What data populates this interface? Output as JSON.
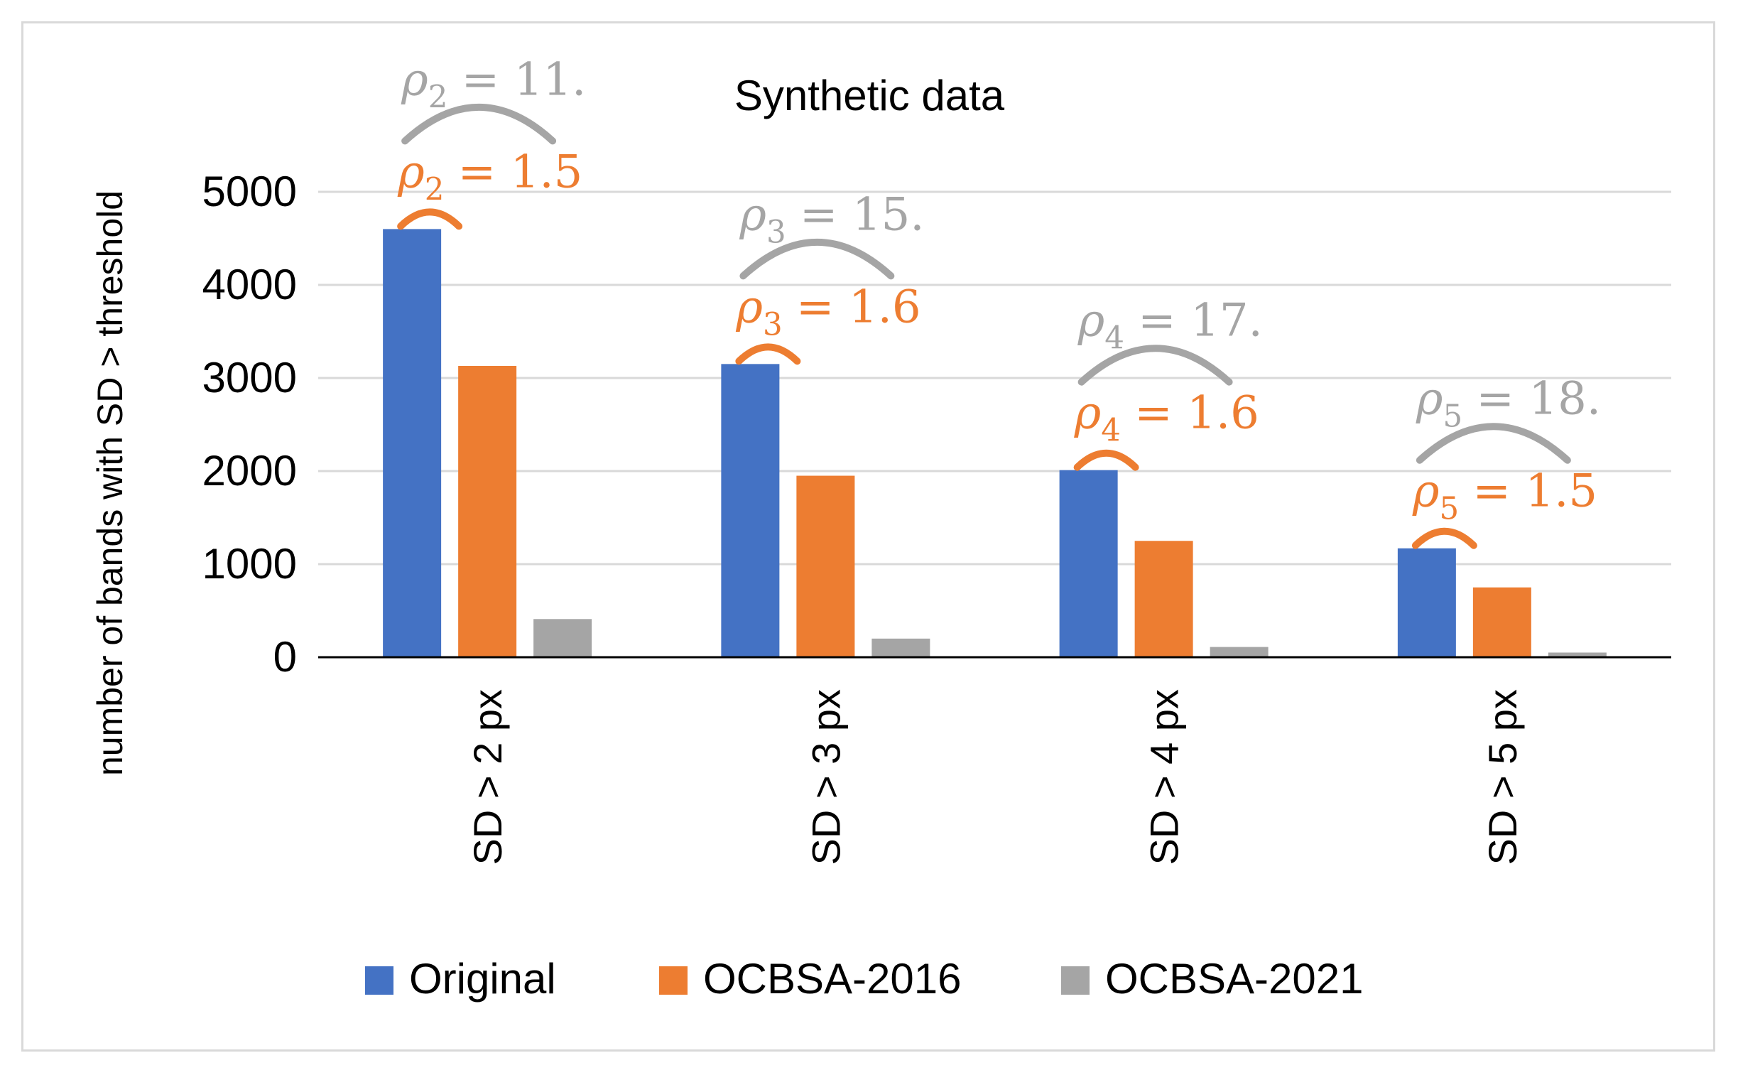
{
  "chart_data": {
    "type": "bar",
    "title": "Synthetic data",
    "xlabel": "",
    "ylabel": "number of bands with SD > threshold",
    "ylim": [
      0,
      5000
    ],
    "yticks": [
      0,
      1000,
      2000,
      3000,
      4000,
      5000
    ],
    "grid": true,
    "legend_position": "bottom",
    "categories": [
      "SD > 2 px",
      "SD > 3 px",
      "SD > 4 px",
      "SD > 5 px"
    ],
    "series": [
      {
        "name": "Original",
        "color": "#4472C4",
        "values": [
          4600,
          3150,
          2010,
          1170
        ]
      },
      {
        "name": "OCBSA-2016",
        "color": "#ED7D31",
        "values": [
          3130,
          1950,
          1250,
          750
        ]
      },
      {
        "name": "OCBSA-2021",
        "color": "#A5A5A5",
        "values": [
          410,
          200,
          110,
          50
        ]
      }
    ],
    "annotations": [
      {
        "category": "SD > 2 px",
        "orange": {
          "symbol": "ρ",
          "sub": "2",
          "text": "= 1.5"
        },
        "gray": {
          "symbol": "ρ",
          "sub": "2",
          "text": "= 11."
        }
      },
      {
        "category": "SD > 3 px",
        "orange": {
          "symbol": "ρ",
          "sub": "3",
          "text": "= 1.6"
        },
        "gray": {
          "symbol": "ρ",
          "sub": "3",
          "text": "= 15."
        }
      },
      {
        "category": "SD > 4 px",
        "orange": {
          "symbol": "ρ",
          "sub": "4",
          "text": "= 1.6"
        },
        "gray": {
          "symbol": "ρ",
          "sub": "4",
          "text": "= 17."
        }
      },
      {
        "category": "SD > 5 px",
        "orange": {
          "symbol": "ρ",
          "sub": "5",
          "text": "= 1.5"
        },
        "gray": {
          "symbol": "ρ",
          "sub": "5",
          "text": "= 18."
        }
      }
    ],
    "annotation_colors": {
      "orange": "#ED7D31",
      "gray": "#A5A5A5"
    }
  }
}
